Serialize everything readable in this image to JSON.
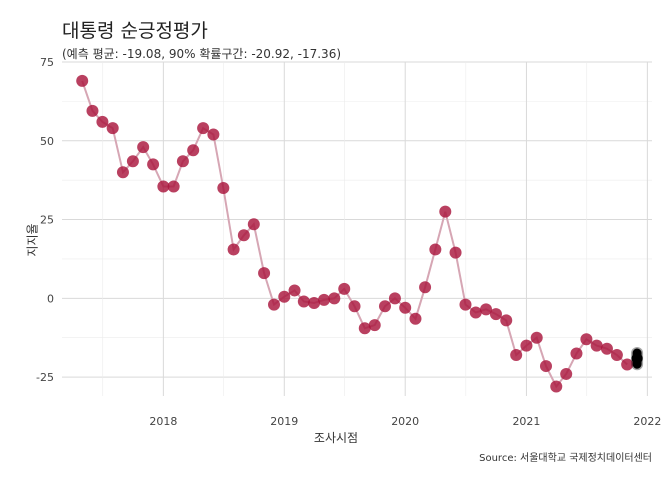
{
  "title": "대통령 순긍정평가",
  "subtitle": "(예측 평균: -19.08, 90% 확률구간: -20.92, -17.36)",
  "caption": "Source: 서울대학교 국제정치데이터센터",
  "colors": {
    "point": "#a9163d",
    "line": "#d6a6b4",
    "grid": "#d9d9d9",
    "forecast": "#000000"
  },
  "chart_data": {
    "type": "line",
    "title": "대통령 순긍정평가",
    "subtitle": "(예측 평균: -19.08, 90% 확률구간: -20.92, -17.36)",
    "xlabel": "조사시점",
    "ylabel": "지지율",
    "ylim": [
      -31,
      75
    ],
    "xlim": [
      "2017-03-01",
      "2022-01-15"
    ],
    "y_ticks": [
      75,
      50,
      25,
      0,
      -25
    ],
    "x_ticks": [
      "2018",
      "2019",
      "2020",
      "2021",
      "2022"
    ],
    "grid": true,
    "series": [
      {
        "x": [
          "2017-05-01",
          "2017-06-01",
          "2017-07-01",
          "2017-08-01",
          "2017-09-01",
          "2017-10-01",
          "2017-11-01",
          "2017-12-01",
          "2018-01-01",
          "2018-02-01",
          "2018-03-01",
          "2018-04-01",
          "2018-05-01",
          "2018-06-01",
          "2018-07-01",
          "2018-08-01",
          "2018-09-01",
          "2018-10-01",
          "2018-11-01",
          "2018-12-01",
          "2019-01-01",
          "2019-02-01",
          "2019-03-01",
          "2019-04-01",
          "2019-05-01",
          "2019-06-01",
          "2019-07-01",
          "2019-08-01",
          "2019-09-01",
          "2019-10-01",
          "2019-11-01",
          "2019-12-01",
          "2020-01-01",
          "2020-02-01",
          "2020-03-01",
          "2020-04-01",
          "2020-05-01",
          "2020-06-01",
          "2020-07-01",
          "2020-08-01",
          "2020-09-01",
          "2020-10-01",
          "2020-11-01",
          "2020-12-01",
          "2021-01-01",
          "2021-02-01",
          "2021-03-01",
          "2021-04-01",
          "2021-05-01",
          "2021-06-01",
          "2021-07-01",
          "2021-08-01",
          "2021-09-01",
          "2021-10-01",
          "2021-11-01"
        ],
        "values": [
          69,
          59.5,
          56,
          54,
          40,
          43.5,
          48,
          42.5,
          35.5,
          35.5,
          43.5,
          47,
          54,
          52,
          35,
          15.5,
          20,
          23.5,
          8,
          -2,
          0.5,
          2.5,
          -1,
          -1.5,
          -0.5,
          0,
          3,
          -2.5,
          -9.5,
          -8.5,
          -2.5,
          0,
          -3,
          -6.5,
          3.5,
          15.5,
          27.5,
          14.5,
          -2,
          -4.5,
          -3.5,
          -5,
          -7,
          -18,
          -15,
          -12.5,
          -21.5,
          -28,
          -24,
          -17.5,
          -13,
          -15,
          -16,
          -18,
          -21
        ]
      }
    ],
    "forecast": {
      "x": "2021-12-01",
      "mean": -19.08,
      "lower": -20.92,
      "upper": -17.36
    }
  }
}
